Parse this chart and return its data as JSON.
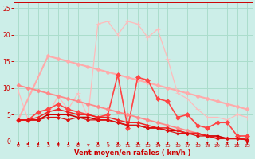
{
  "bg_color": "#cceee8",
  "grid_color": "#aaddcc",
  "xlabel": "Vent moyen/en rafales ( km/h )",
  "xlabel_color": "#cc0000",
  "tick_color": "#cc0000",
  "ylim": [
    0,
    26
  ],
  "xlim": [
    -0.5,
    23.5
  ],
  "yticks": [
    0,
    5,
    10,
    15,
    20,
    25
  ],
  "xticks": [
    0,
    1,
    2,
    3,
    4,
    5,
    6,
    7,
    8,
    9,
    10,
    11,
    12,
    13,
    14,
    15,
    16,
    17,
    18,
    19,
    20,
    21,
    22,
    23
  ],
  "series": [
    {
      "x": [
        0,
        3,
        4,
        5,
        6,
        7,
        8,
        9,
        10,
        11,
        12,
        13,
        14,
        15,
        16,
        17,
        18,
        19,
        20,
        21,
        22,
        23
      ],
      "y": [
        4.0,
        16.0,
        15.5,
        15.0,
        14.5,
        14.0,
        13.5,
        13.0,
        12.5,
        12.0,
        11.5,
        11.0,
        10.5,
        10.0,
        9.5,
        9.0,
        8.5,
        8.0,
        7.5,
        7.0,
        6.5,
        6.0
      ],
      "color": "#ffaaaa",
      "lw": 1.5,
      "marker": "D",
      "ms": 2.5
    },
    {
      "x": [
        0,
        1,
        2,
        3,
        4,
        5,
        6,
        7,
        8,
        9,
        10,
        11,
        12,
        13,
        14,
        15,
        16,
        17,
        18,
        19,
        20,
        21,
        22,
        23
      ],
      "y": [
        9.5,
        4.0,
        4.0,
        5.0,
        8.5,
        6.0,
        9.0,
        4.5,
        22.0,
        22.5,
        20.0,
        22.5,
        22.0,
        19.5,
        21.0,
        15.5,
        9.0,
        8.0,
        6.0,
        4.5,
        4.5,
        4.0,
        5.0,
        4.5
      ],
      "color": "#ffbbbb",
      "lw": 0.9,
      "marker": "+",
      "ms": 4
    },
    {
      "x": [
        0,
        1,
        2,
        3,
        4,
        5,
        6,
        7,
        8,
        9,
        10,
        11,
        12,
        13,
        14,
        15,
        16,
        17,
        18,
        19,
        20,
        21,
        22,
        23
      ],
      "y": [
        4.0,
        4.0,
        5.5,
        6.0,
        7.0,
        6.0,
        5.5,
        5.0,
        4.5,
        5.0,
        12.5,
        2.5,
        12.0,
        11.5,
        8.0,
        7.5,
        4.5,
        5.0,
        3.0,
        2.5,
        3.5,
        3.5,
        1.0,
        1.0
      ],
      "color": "#ff4444",
      "lw": 1.2,
      "marker": "D",
      "ms": 3
    },
    {
      "x": [
        0,
        1,
        2,
        3,
        4,
        5,
        6,
        7,
        8,
        9,
        10,
        11,
        12,
        13,
        14,
        15,
        16,
        17,
        18,
        19,
        20,
        21,
        22,
        23
      ],
      "y": [
        10.5,
        10.0,
        9.5,
        9.0,
        8.5,
        8.0,
        7.5,
        7.0,
        6.5,
        6.0,
        5.5,
        5.0,
        4.5,
        4.0,
        3.5,
        3.0,
        2.5,
        2.0,
        1.5,
        1.0,
        0.8,
        0.5,
        0.5,
        0.3
      ],
      "color": "#ff8888",
      "lw": 1.3,
      "marker": "D",
      "ms": 2.5
    },
    {
      "x": [
        0,
        1,
        2,
        3,
        4,
        5,
        6,
        7,
        8,
        9,
        10,
        11,
        12,
        13,
        14,
        15,
        16,
        17,
        18,
        19,
        20,
        21,
        22,
        23
      ],
      "y": [
        4.0,
        4.0,
        4.0,
        5.0,
        5.0,
        5.0,
        4.5,
        4.5,
        4.0,
        4.0,
        3.5,
        3.0,
        3.0,
        2.5,
        2.5,
        2.0,
        2.0,
        1.5,
        1.5,
        1.0,
        1.0,
        0.5,
        0.5,
        0.3
      ],
      "color": "#cc0000",
      "lw": 1.2,
      "marker": "D",
      "ms": 2
    },
    {
      "x": [
        0,
        1,
        2,
        3,
        4,
        5,
        6,
        7,
        8,
        9,
        10,
        11,
        12,
        13,
        14,
        15,
        16,
        17,
        18,
        19,
        20,
        21,
        22,
        23
      ],
      "y": [
        4.0,
        4.0,
        4.5,
        5.5,
        6.0,
        5.5,
        5.0,
        5.0,
        4.5,
        4.5,
        4.0,
        3.5,
        3.5,
        3.0,
        2.5,
        2.5,
        2.0,
        1.5,
        1.5,
        1.0,
        0.5,
        0.5,
        0.5,
        0.3
      ],
      "color": "#ee2222",
      "lw": 1.1,
      "marker": "D",
      "ms": 2
    },
    {
      "x": [
        0,
        1,
        2,
        3,
        4,
        5,
        6,
        7,
        8,
        9,
        10,
        11,
        12,
        13,
        14,
        15,
        16,
        17,
        18,
        19,
        20,
        21,
        22,
        23
      ],
      "y": [
        4.0,
        4.0,
        4.0,
        4.5,
        4.5,
        4.0,
        4.5,
        4.0,
        4.0,
        4.0,
        3.5,
        3.0,
        3.0,
        2.5,
        2.5,
        2.0,
        1.5,
        1.5,
        1.0,
        1.0,
        0.5,
        0.5,
        0.5,
        0.3
      ],
      "color": "#dd1111",
      "lw": 0.9,
      "marker": "D",
      "ms": 2
    }
  ],
  "figsize": [
    3.2,
    2.0
  ],
  "dpi": 100
}
